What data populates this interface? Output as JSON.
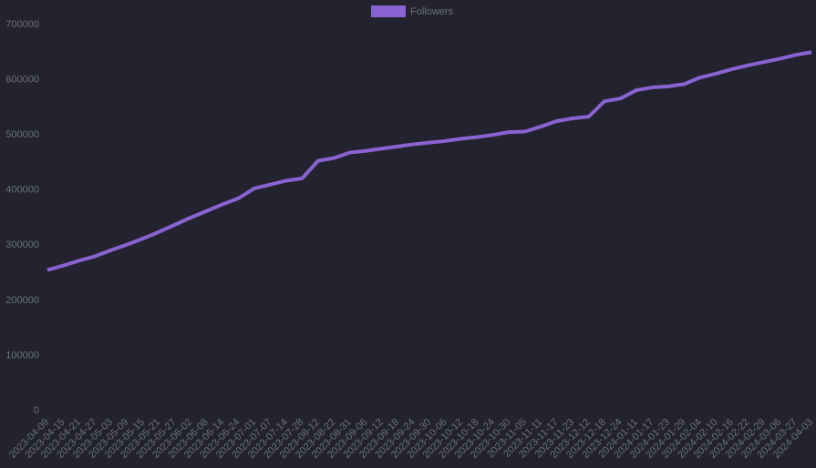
{
  "chart_data": {
    "type": "line",
    "categories": [
      "2023-04-09",
      "2023-04-15",
      "2023-04-21",
      "2023-04-27",
      "2023-05-03",
      "2023-05-09",
      "2023-05-15",
      "2023-05-21",
      "2023-05-27",
      "2023-06-02",
      "2023-06-08",
      "2023-06-14",
      "2023-06-24",
      "2023-07-01",
      "2023-07-07",
      "2023-07-14",
      "2023-07-28",
      "2023-08-12",
      "2023-08-22",
      "2023-08-31",
      "2023-09-06",
      "2023-09-12",
      "2023-09-18",
      "2023-09-24",
      "2023-09-30",
      "2023-10-06",
      "2023-10-12",
      "2023-10-18",
      "2023-10-24",
      "2023-10-30",
      "2023-11-05",
      "2023-11-11",
      "2023-11-17",
      "2023-11-23",
      "2023-12-12",
      "2023-12-18",
      "2023-12-24",
      "2024-01-11",
      "2024-01-17",
      "2024-01-23",
      "2024-01-29",
      "2024-02-04",
      "2024-02-10",
      "2024-02-16",
      "2024-02-22",
      "2024-02-29",
      "2024-03-06",
      "2024-03-27",
      "2024-04-03"
    ],
    "series": [
      {
        "name": "Followers",
        "color": "#8a63d2",
        "values": [
          255000,
          263000,
          272000,
          280000,
          291000,
          301000,
          312000,
          324000,
          337000,
          350000,
          362000,
          374000,
          385000,
          403000,
          410000,
          417000,
          421000,
          453000,
          458000,
          468000,
          471000,
          475000,
          479000,
          483000,
          486000,
          489000,
          493000,
          496000,
          500000,
          505000,
          506000,
          515000,
          525000,
          530000,
          533000,
          561000,
          566000,
          581000,
          586000,
          588000,
          592000,
          604000,
          611000,
          619000,
          626000,
          632000,
          638000,
          645000,
          650000
        ]
      }
    ],
    "ylim": [
      0,
      700000
    ],
    "yticks": [
      0,
      100000,
      200000,
      300000,
      400000,
      500000,
      600000,
      700000
    ],
    "legend": "top"
  }
}
